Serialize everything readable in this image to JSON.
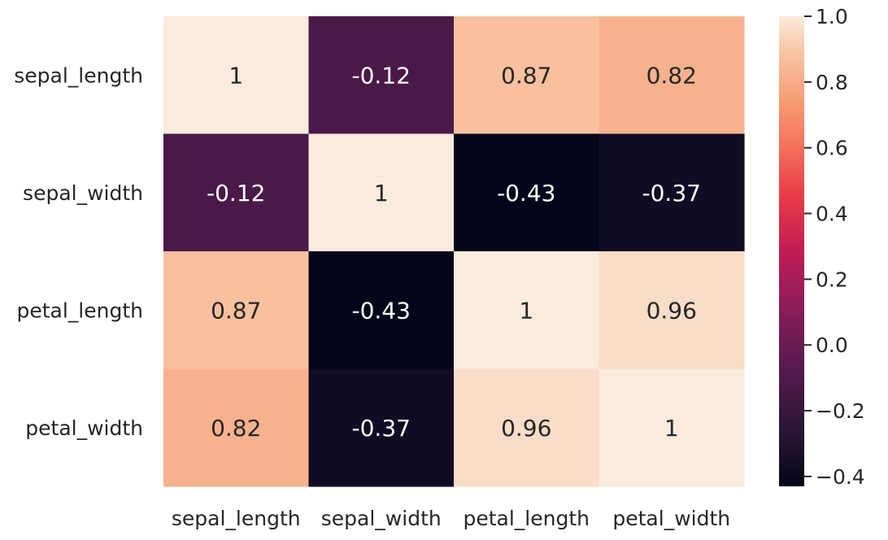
{
  "chart_data": {
    "type": "heatmap",
    "title": "",
    "xlabel": "",
    "ylabel": "",
    "x_categories": [
      "sepal_length",
      "sepal_width",
      "petal_length",
      "petal_width"
    ],
    "y_categories": [
      "sepal_length",
      "sepal_width",
      "petal_length",
      "petal_width"
    ],
    "values": [
      [
        1,
        -0.12,
        0.87,
        0.82
      ],
      [
        -0.12,
        1,
        -0.43,
        -0.37
      ],
      [
        0.87,
        -0.43,
        1,
        0.96
      ],
      [
        0.82,
        -0.37,
        0.96,
        1
      ]
    ],
    "cell_labels": [
      [
        "1",
        "-0.12",
        "0.87",
        "0.82"
      ],
      [
        "-0.12",
        "1",
        "-0.43",
        "-0.37"
      ],
      [
        "0.87",
        "-0.43",
        "1",
        "0.96"
      ],
      [
        "0.82",
        "-0.37",
        "0.96",
        "1"
      ]
    ],
    "colormap": "rocket",
    "vmin": -0.43,
    "vmax": 1.0,
    "colorbar": {
      "ticks": [
        1.0,
        0.8,
        0.6,
        0.4,
        0.2,
        0.0,
        -0.2,
        -0.4
      ],
      "tick_labels": [
        "1.0",
        "0.8",
        "0.6",
        "0.4",
        "0.2",
        "0.0",
        "−0.2",
        "−0.4"
      ]
    },
    "grid": false,
    "legend": "colorbar-right"
  }
}
